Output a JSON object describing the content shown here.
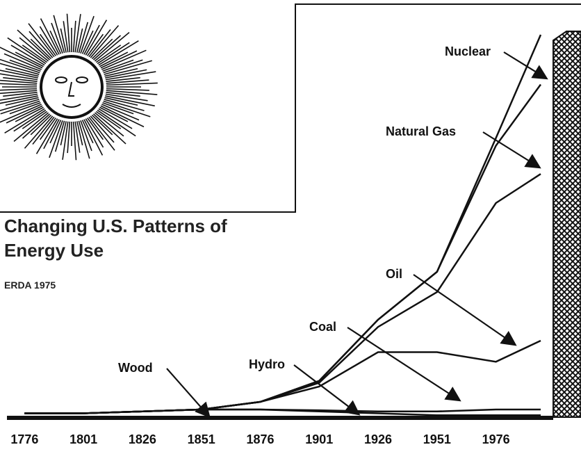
{
  "chart_data": {
    "type": "stacked-line",
    "title": "Changing U.S. Patterns of Energy Use",
    "source": "ERDA 1975",
    "x": [
      1776,
      1801,
      1826,
      1851,
      1876,
      1901,
      1926,
      1951,
      1976,
      1995
    ],
    "xlim": [
      1770,
      2000
    ],
    "xticks": [
      1776,
      1801,
      1826,
      1851,
      1876,
      1901,
      1926,
      1951,
      1976
    ],
    "ylim": [
      0,
      100
    ],
    "series": [
      {
        "name": "Wood",
        "color": "#111111",
        "values": [
          1,
          1,
          1.5,
          2,
          2,
          1.5,
          1,
          0.5,
          0.5,
          0.5
        ]
      },
      {
        "name": "Hydro",
        "color": "#111111",
        "values": [
          0,
          0,
          0,
          0,
          0,
          0.3,
          0.5,
          1,
          1.5,
          1.5
        ]
      },
      {
        "name": "Coal",
        "color": "#111111",
        "values": [
          0,
          0,
          0,
          0,
          2,
          6.2,
          15.5,
          15.5,
          12.5,
          18
        ]
      },
      {
        "name": "Oil",
        "color": "#111111",
        "values": [
          0,
          0,
          0,
          0,
          0,
          1,
          6.6,
          15.7,
          41.5,
          43.6
        ]
      },
      {
        "name": "Natural Gas",
        "color": "#111111",
        "values": [
          0,
          0,
          0,
          0,
          0,
          0.5,
          1.9,
          5.3,
          15,
          23.4
        ]
      },
      {
        "name": "Nuclear",
        "color": "#111111",
        "values": [
          0,
          0,
          0,
          0,
          0,
          0,
          0,
          0,
          2,
          13
        ]
      }
    ]
  }
}
